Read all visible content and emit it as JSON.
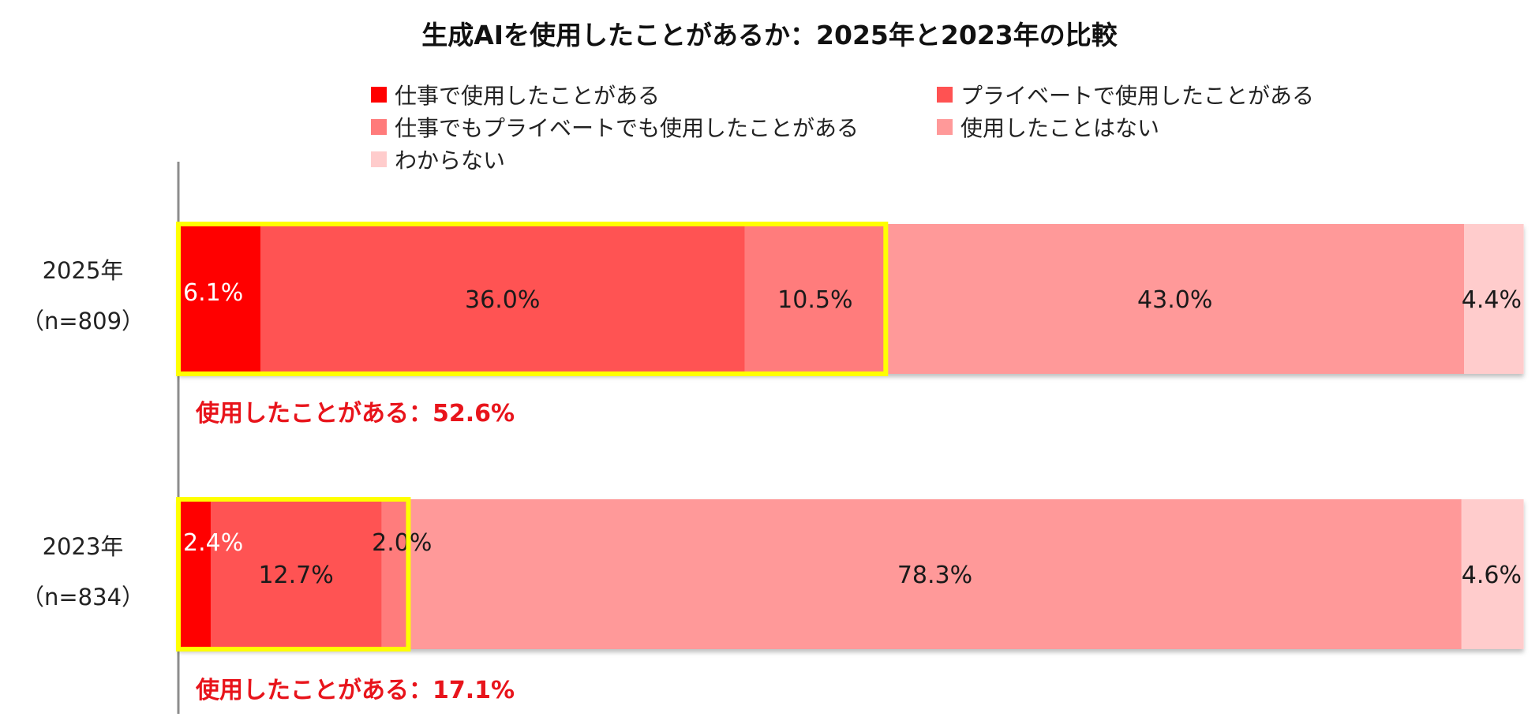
{
  "chart_data": {
    "type": "bar",
    "orientation": "horizontal",
    "stacked": true,
    "percent_stacked": true,
    "title": "生成AIを使用したことがあるか：2025年と2023年の比較",
    "categories": [
      {
        "year": "2025年",
        "n": "（n=809）",
        "summary": "使用したことがある：52.6%",
        "highlight_upto": 3
      },
      {
        "year": "2023年",
        "n": "（n=834）",
        "summary": "使用したことがある：17.1%",
        "highlight_upto": 3
      }
    ],
    "series": [
      {
        "name": "仕事で使用したことがある",
        "color": "#ff0000",
        "label_color": "#ffffff",
        "values": [
          6.1,
          2.4
        ],
        "labels": [
          "6.1%",
          "2.4%"
        ]
      },
      {
        "name": "プライベートで使用したことがある",
        "color": "#ff5252",
        "label_color": "#1a1a1a",
        "values": [
          36.0,
          12.7
        ],
        "labels": [
          "36.0%",
          "12.7%"
        ]
      },
      {
        "name": "仕事でもプライベートでも使用したことがある",
        "color": "#ff7b7b",
        "label_color": "#1a1a1a",
        "values": [
          10.5,
          2.0
        ],
        "labels": [
          "10.5%",
          "2.0%"
        ]
      },
      {
        "name": "使用したことはない",
        "color": "#ff9999",
        "label_color": "#1a1a1a",
        "values": [
          43.0,
          78.3
        ],
        "labels": [
          "43.0%",
          "78.3%"
        ]
      },
      {
        "name": "わからない",
        "color": "#ffcccc",
        "label_color": "#1a1a1a",
        "values": [
          4.4,
          4.6
        ],
        "labels": [
          "4.4%",
          "4.6%"
        ]
      }
    ],
    "xlim": [
      0,
      100
    ],
    "highlight_color": "#ffff00",
    "summary_color": "#e8141b"
  }
}
